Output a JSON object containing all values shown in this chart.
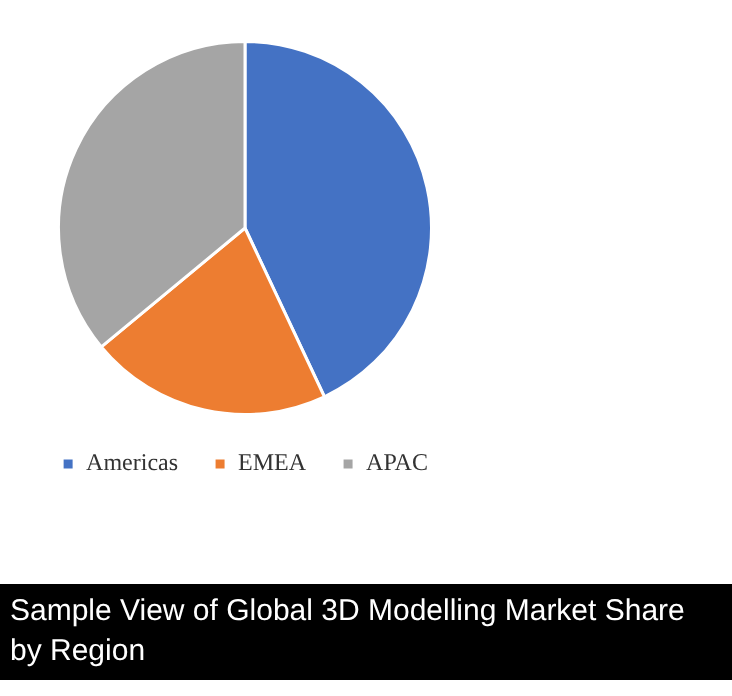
{
  "chart_data": {
    "type": "pie",
    "title": "Sample View of Global 3D Modelling Market Share by Region",
    "categories": [
      "Americas",
      "EMEA",
      "APAC"
    ],
    "values": [
      43,
      21,
      36
    ],
    "colors": [
      "#4472c4",
      "#ed7d31",
      "#a5a5a5"
    ],
    "legend": "bottom"
  }
}
